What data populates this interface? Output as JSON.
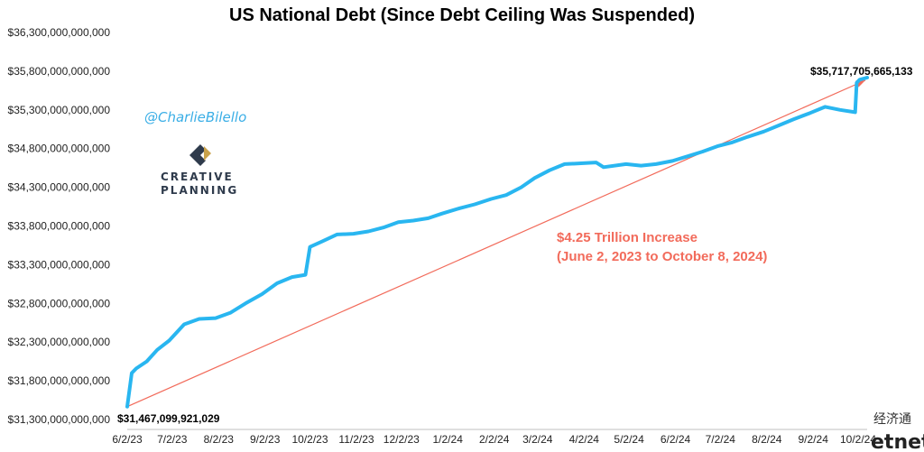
{
  "chart_data": {
    "type": "line",
    "title": "US National Debt (Since Debt Ceiling Was Suspended)",
    "y_ticks": [
      "$31,300,000,000,000",
      "$31,800,000,000,000",
      "$32,300,000,000,000",
      "$32,800,000,000,000",
      "$33,300,000,000,000",
      "$33,800,000,000,000",
      "$34,300,000,000,000",
      "$34,800,000,000,000",
      "$35,300,000,000,000",
      "$35,800,000,000,000",
      "$36,300,000,000,000"
    ],
    "x_ticks": [
      "6/2/23",
      "7/2/23",
      "8/2/23",
      "9/2/23",
      "10/2/23",
      "11/2/23",
      "12/2/23",
      "1/2/24",
      "2/2/24",
      "3/2/24",
      "4/2/24",
      "5/2/24",
      "6/2/24",
      "7/2/24",
      "8/2/24",
      "9/2/24",
      "10/2/24"
    ],
    "ylim": [
      31300000000000,
      36300000000000
    ],
    "grid": false,
    "series": [
      {
        "color": "#29b6f0",
        "x": [
          "2023-06-02",
          "2023-06-05",
          "2023-06-08",
          "2023-06-15",
          "2023-06-22",
          "2023-06-30",
          "2023-07-10",
          "2023-07-20",
          "2023-07-31",
          "2023-08-10",
          "2023-08-20",
          "2023-08-31",
          "2023-09-10",
          "2023-09-20",
          "2023-09-29",
          "2023-10-02",
          "2023-10-10",
          "2023-10-20",
          "2023-10-31",
          "2023-11-10",
          "2023-11-20",
          "2023-11-30",
          "2023-12-10",
          "2023-12-20",
          "2023-12-29",
          "2024-01-10",
          "2024-01-20",
          "2024-01-31",
          "2024-02-10",
          "2024-02-20",
          "2024-02-29",
          "2024-03-10",
          "2024-03-20",
          "2024-03-31",
          "2024-04-10",
          "2024-04-15",
          "2024-04-30",
          "2024-05-10",
          "2024-05-20",
          "2024-05-31",
          "2024-06-10",
          "2024-06-20",
          "2024-06-30",
          "2024-07-10",
          "2024-07-20",
          "2024-07-31",
          "2024-08-10",
          "2024-08-20",
          "2024-08-31",
          "2024-09-10",
          "2024-09-20",
          "2024-09-30",
          "2024-10-01",
          "2024-10-03",
          "2024-10-08"
        ],
        "values": [
          31467099921029,
          31900000000000,
          31960000000000,
          32050000000000,
          32200000000000,
          32320000000000,
          32530000000000,
          32600000000000,
          32610000000000,
          32680000000000,
          32800000000000,
          32920000000000,
          33060000000000,
          33140000000000,
          33170000000000,
          33530000000000,
          33600000000000,
          33690000000000,
          33700000000000,
          33730000000000,
          33780000000000,
          33850000000000,
          33870000000000,
          33900000000000,
          33960000000000,
          34030000000000,
          34080000000000,
          34150000000000,
          34200000000000,
          34300000000000,
          34420000000000,
          34520000000000,
          34600000000000,
          34610000000000,
          34620000000000,
          34560000000000,
          34600000000000,
          34580000000000,
          34600000000000,
          34640000000000,
          34700000000000,
          34760000000000,
          34830000000000,
          34880000000000,
          34950000000000,
          35020000000000,
          35100000000000,
          35180000000000,
          35260000000000,
          35340000000000,
          35300000000000,
          35270000000000,
          35650000000000,
          35690000000000,
          35717705665133
        ]
      }
    ],
    "trendline": {
      "color": "#f26b5b",
      "from": {
        "x": "2023-06-02",
        "value": 31467099921029
      },
      "to": {
        "x": "2024-10-08",
        "value": 35717705665133
      }
    },
    "labels": {
      "start": "$31,467,099,921,029",
      "end": "$35,717,705,665,133",
      "annotation_line1": "$4.25 Trillion Increase",
      "annotation_line2": "(June 2, 2023 to October 8, 2024)"
    }
  },
  "branding": {
    "handle": "@CharlieBilello",
    "logo_line1": "CREATIVE",
    "logo_line2": "PLANNING",
    "watermark_cn": "经济通",
    "watermark_en": "etnet"
  }
}
